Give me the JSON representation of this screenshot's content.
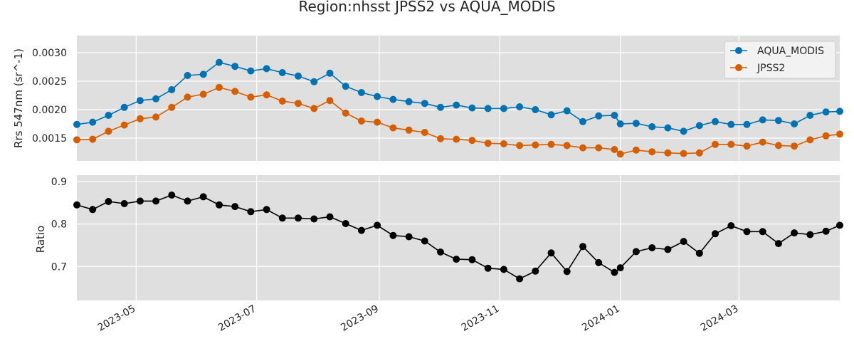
{
  "chart_data": {
    "type": "line",
    "title": "Region:nhsst JPSS2 vs AQUA_MODIS",
    "background_color": "#dfdfdf",
    "grid": true,
    "x_axis": {
      "type": "date",
      "range": [
        "2023-04-01",
        "2024-04-21"
      ],
      "ticks": [
        "2023-05",
        "2023-07",
        "2023-09",
        "2023-11",
        "2024-01",
        "2024-03"
      ],
      "tick_dates": [
        "2023-05-01",
        "2023-07-01",
        "2023-09-01",
        "2023-11-01",
        "2024-01-01",
        "2024-03-01"
      ],
      "shared": true
    },
    "x_dates": [
      "2023-04-01",
      "2023-04-09",
      "2023-04-17",
      "2023-04-25",
      "2023-05-03",
      "2023-05-11",
      "2023-05-19",
      "2023-05-27",
      "2023-06-04",
      "2023-06-12",
      "2023-06-20",
      "2023-06-28",
      "2023-07-06",
      "2023-07-14",
      "2023-07-22",
      "2023-07-30",
      "2023-08-07",
      "2023-08-15",
      "2023-08-23",
      "2023-08-31",
      "2023-09-08",
      "2023-09-16",
      "2023-09-24",
      "2023-10-02",
      "2023-10-10",
      "2023-10-18",
      "2023-10-26",
      "2023-11-03",
      "2023-11-11",
      "2023-11-19",
      "2023-11-27",
      "2023-12-05",
      "2023-12-13",
      "2023-12-21",
      "2023-12-29",
      "2024-01-01",
      "2024-01-09",
      "2024-01-17",
      "2024-01-25",
      "2024-02-02",
      "2024-02-10",
      "2024-02-18",
      "2024-02-26",
      "2024-03-05",
      "2024-03-13",
      "2024-03-21",
      "2024-03-29",
      "2024-04-06",
      "2024-04-14",
      "2024-04-21"
    ],
    "panels": [
      {
        "ylabel": "Rrs 547nm (sr^-1)",
        "ylim": [
          0.0011,
          0.0033
        ],
        "yticks": [
          0.0015,
          0.002,
          0.0025,
          0.003
        ],
        "ytick_labels": [
          "0.0015",
          "0.0020",
          "0.0025",
          "0.0030"
        ],
        "legend_position": "top-right",
        "series": [
          {
            "name": "AQUA_MODIS",
            "color": "#0072b2",
            "marker": "circle",
            "values": [
              0.00174,
              0.00178,
              0.0019,
              0.00204,
              0.00216,
              0.00219,
              0.00235,
              0.0026,
              0.00262,
              0.00283,
              0.00276,
              0.00268,
              0.00272,
              0.00265,
              0.00259,
              0.00249,
              0.00264,
              0.00241,
              0.0023,
              0.00223,
              0.00218,
              0.00214,
              0.00211,
              0.00204,
              0.00208,
              0.00203,
              0.00202,
              0.00202,
              0.00205,
              0.002,
              0.00191,
              0.00198,
              0.00179,
              0.00189,
              0.0019,
              0.00175,
              0.00176,
              0.0017,
              0.00168,
              0.00162,
              0.00172,
              0.00179,
              0.00174,
              0.00174,
              0.00182,
              0.00181,
              0.00175,
              0.0019,
              0.00196,
              0.00197
            ]
          },
          {
            "name": "JPSS2",
            "color": "#d55e00",
            "marker": "circle",
            "values": [
              0.00147,
              0.00148,
              0.00162,
              0.00173,
              0.00184,
              0.00187,
              0.00204,
              0.00222,
              0.00227,
              0.00239,
              0.00232,
              0.00222,
              0.00226,
              0.00215,
              0.00211,
              0.00202,
              0.00216,
              0.00194,
              0.0018,
              0.00178,
              0.00168,
              0.00164,
              0.0016,
              0.00149,
              0.00148,
              0.00146,
              0.00141,
              0.0014,
              0.00137,
              0.00138,
              0.00139,
              0.00137,
              0.00133,
              0.00133,
              0.0013,
              0.00122,
              0.00129,
              0.00126,
              0.00124,
              0.00123,
              0.00124,
              0.00139,
              0.00139,
              0.00136,
              0.00143,
              0.00137,
              0.00136,
              0.00147,
              0.00154,
              0.00157
            ]
          }
        ]
      },
      {
        "ylabel": "Ratio",
        "ylim": [
          0.62,
          0.915
        ],
        "yticks": [
          0.7,
          0.8,
          0.9
        ],
        "ytick_labels": [
          "0.7",
          "0.8",
          "0.9"
        ],
        "series": [
          {
            "name": "",
            "color": "#000000",
            "marker": "circle",
            "values": [
              0.845,
              0.834,
              0.853,
              0.848,
              0.854,
              0.854,
              0.868,
              0.854,
              0.864,
              0.845,
              0.841,
              0.829,
              0.834,
              0.814,
              0.814,
              0.812,
              0.817,
              0.801,
              0.785,
              0.797,
              0.773,
              0.77,
              0.76,
              0.734,
              0.717,
              0.716,
              0.696,
              0.693,
              0.671,
              0.689,
              0.732,
              0.688,
              0.747,
              0.709,
              0.686,
              0.697,
              0.735,
              0.744,
              0.74,
              0.759,
              0.731,
              0.777,
              0.796,
              0.782,
              0.782,
              0.754,
              0.779,
              0.775,
              0.783,
              0.797
            ]
          }
        ]
      }
    ]
  }
}
